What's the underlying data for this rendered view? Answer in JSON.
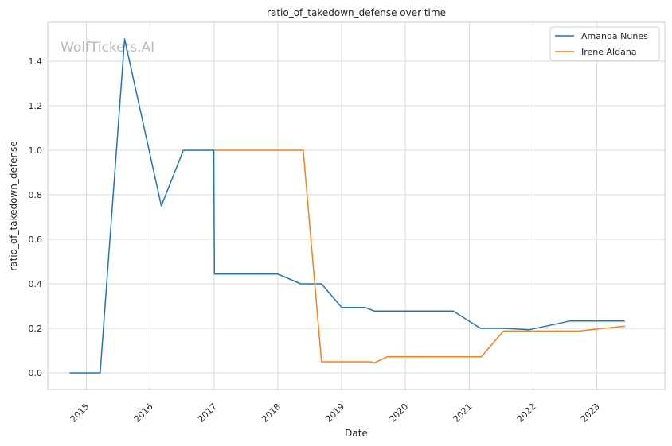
{
  "chart_data": {
    "type": "line",
    "title": "ratio_of_takedown_defense over time",
    "xlabel": "Date",
    "ylabel": "ratio_of_takedown_defense",
    "watermark": "WolfTickets.AI",
    "x_ticks": [
      "2015",
      "2016",
      "2017",
      "2018",
      "2019",
      "2020",
      "2021",
      "2022",
      "2023"
    ],
    "y_ticks": [
      "0.0",
      "0.2",
      "0.4",
      "0.6",
      "0.8",
      "1.0",
      "1.2",
      "1.4"
    ],
    "xlim": [
      "2014-05-25",
      "2024-01-25"
    ],
    "ylim": [
      -0.075,
      1.575
    ],
    "grid": true,
    "legend_position": "top-right",
    "series": [
      {
        "name": "Amanda Nunes",
        "color": "#1f77b4",
        "x": [
          "2014-09-27",
          "2015-03-21",
          "2015-08-08",
          "2016-03-05",
          "2016-07-09",
          "2016-12-30",
          "2017-01-03",
          "2018-01-01",
          "2018-05-12",
          "2018-09-08",
          "2019-01-01",
          "2019-05-15",
          "2019-07-06",
          "2020-10-01",
          "2021-03-06",
          "2021-07-15",
          "2021-12-11",
          "2022-07-30",
          "2023-06-10"
        ],
        "values": [
          0.0,
          0.0,
          1.5,
          0.75,
          1.0,
          1.0,
          0.444,
          0.444,
          0.4,
          0.4,
          0.294,
          0.294,
          0.278,
          0.278,
          0.2,
          0.2,
          0.194,
          0.233,
          0.233
        ]
      },
      {
        "name": "Irene Aldana",
        "color": "#ff7f0e",
        "x": [
          "2017-01-01",
          "2018-05-26",
          "2018-09-08",
          "2019-06-15",
          "2019-07-06",
          "2019-09-21",
          "2020-05-01",
          "2021-03-10",
          "2021-07-15",
          "2022-09-20",
          "2023-06-10"
        ],
        "values": [
          1.0,
          1.0,
          0.05,
          0.05,
          0.045,
          0.073,
          0.072,
          0.072,
          0.188,
          0.188,
          0.21
        ]
      }
    ]
  }
}
